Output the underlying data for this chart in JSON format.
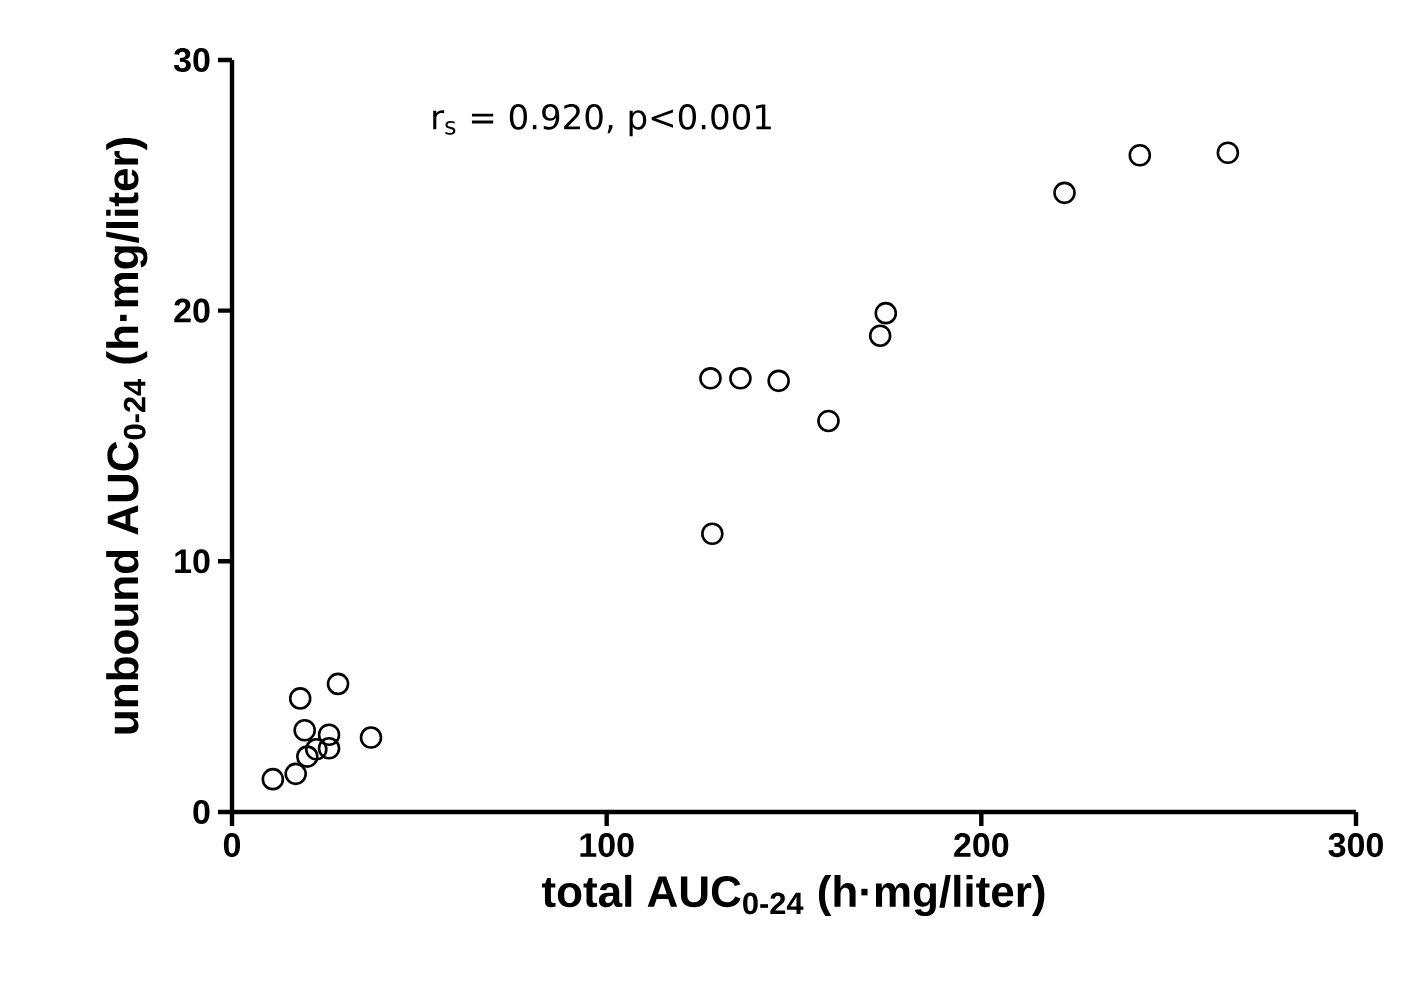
{
  "chart_data": {
    "type": "scatter",
    "xlabel": "total AUC$_{0-24}$ (h·mg/liter)",
    "ylabel": "unbound AUC$_{0-24}$ (h·mg/liter)",
    "annotations": [
      "r$_{s}$ = 0.920, p<0.001"
    ],
    "xlim": [
      0,
      300
    ],
    "ylim": [
      0,
      30
    ],
    "xticks": [
      0,
      100,
      200,
      300
    ],
    "yticks": [
      0,
      10,
      20,
      30
    ],
    "marker": "circle",
    "color": "#000000",
    "x": [
      10.9,
      17.0,
      20.1,
      22.5,
      25.9,
      25.9,
      19.4,
      18.2,
      28.3,
      37.1,
      127.7,
      135.7,
      145.9,
      159.2,
      128.2,
      173.0,
      174.5,
      222.2,
      242.3,
      265.8
    ],
    "values": [
      1.31,
      1.52,
      2.21,
      2.5,
      2.54,
      3.08,
      3.26,
      4.53,
      5.11,
      2.97,
      17.3,
      17.3,
      17.2,
      15.6,
      11.1,
      19.0,
      19.9,
      24.7,
      26.2,
      26.3
    ]
  }
}
